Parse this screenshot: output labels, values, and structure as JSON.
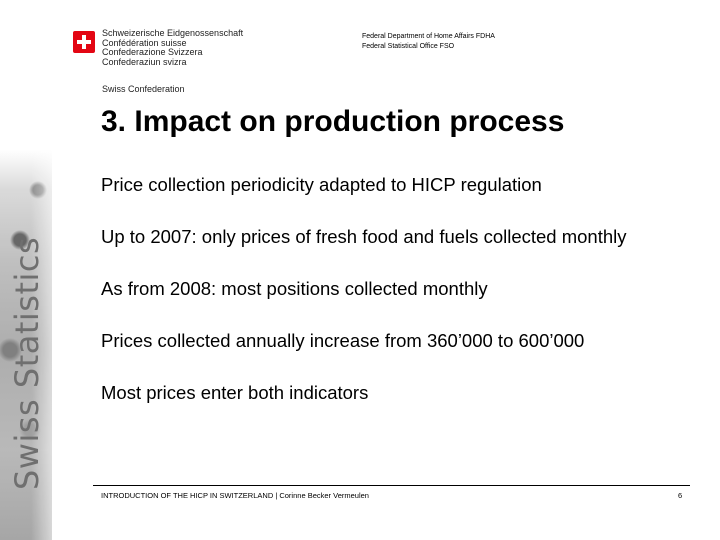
{
  "header": {
    "confederation_lines": [
      "Schweizerische Eidgenossenschaft",
      "Confédération suisse",
      "Confederazione Svizzera",
      "Confederaziun svizra"
    ],
    "confederation_short": "Swiss Confederation",
    "department_lines": [
      "Federal Department of Home Affairs FDHA",
      "Federal Statistical Office FSO"
    ]
  },
  "side_label": "Swiss Statistics",
  "slide": {
    "title": "3. Impact on production process",
    "bullets": [
      "Price collection periodicity adapted to HICP regulation",
      "Up to 2007: only prices of fresh food and fuels collected monthly",
      "As from 2008: most positions collected monthly",
      "Prices collected annually increase from 360’000 to 600’000",
      "Most prices enter both indicators"
    ]
  },
  "footer": {
    "text": "INTRODUCTION OF THE HICP IN SWITZERLAND | Corinne Becker Vermeulen",
    "page": "6"
  },
  "colors": {
    "swiss_red": "#e30613",
    "side_text": "#6f6f6f"
  },
  "icons": [
    "swiss-cross-icon"
  ]
}
